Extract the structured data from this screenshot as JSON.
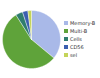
{
  "chart_data": {
    "type": "pie",
    "categories": [
      "Memory-B",
      "Multi-B",
      "Cells",
      "CD56",
      "sel"
    ],
    "values": [
      36,
      55,
      4,
      3,
      2
    ],
    "colors": [
      "#a9b9e8",
      "#5fa33a",
      "#2f7d6e",
      "#3b5fb0",
      "#c4d45a"
    ],
    "legend": "right"
  }
}
